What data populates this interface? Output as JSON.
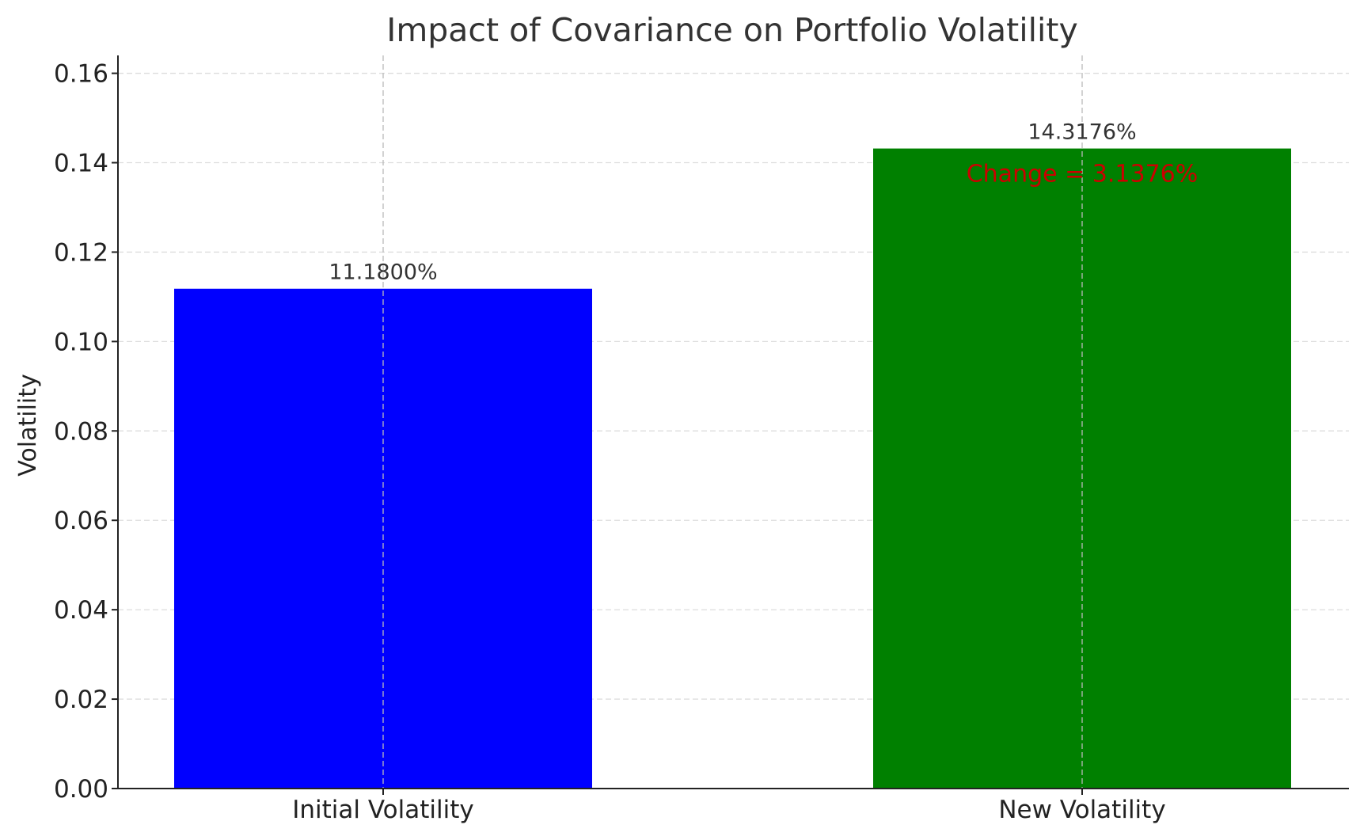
{
  "chart_data": {
    "type": "bar",
    "title": "Impact of Covariance on Portfolio Volatility",
    "xlabel": "",
    "ylabel": "Volatility",
    "categories": [
      "Initial Volatility",
      "New Volatility"
    ],
    "values": [
      0.1118,
      0.143176
    ],
    "bar_labels": [
      "11.1800%",
      "14.3176%"
    ],
    "bar_colors": [
      "#0000ff",
      "#008000"
    ],
    "ylim": [
      0,
      0.164
    ],
    "yticks": [
      0.0,
      0.02,
      0.04,
      0.06,
      0.08,
      0.1,
      0.12,
      0.14,
      0.16
    ],
    "ytick_labels": [
      "0.00",
      "0.02",
      "0.04",
      "0.06",
      "0.08",
      "0.10",
      "0.12",
      "0.14",
      "0.16"
    ],
    "grid": true,
    "annotation": {
      "text": "Change = 3.1376%",
      "color": "#cc0000",
      "y": 0.135
    }
  }
}
